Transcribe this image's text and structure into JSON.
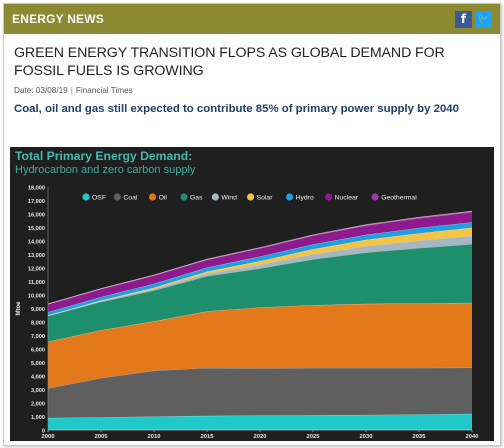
{
  "header": {
    "section_title": "ENERGY NEWS",
    "share_icons": [
      "facebook-icon",
      "twitter-icon"
    ],
    "facebook_glyph": "f",
    "twitter_glyph": "🐦"
  },
  "article": {
    "headline": "GREEN ENERGY TRANSITION FLOPS AS GLOBAL DEMAND FOR FOSSIL FUELS IS GROWING",
    "date": "Date: 03/08/19",
    "separator": "|",
    "source": "Financial Times",
    "subheadline": "Coal, oil and gas still expected to contribute 85% of primary power supply by 2040"
  },
  "chart_data": {
    "type": "area",
    "stacked": true,
    "title": "Total Primary Energy Demand:",
    "subtitle": "Hydrocarbon and zero carbon supply",
    "xlabel": "",
    "ylabel": "Mtoe",
    "xlim": [
      2000,
      2040
    ],
    "ylim": [
      0,
      18000
    ],
    "x_ticks": [
      2000,
      2005,
      2010,
      2015,
      2020,
      2025,
      2030,
      2035,
      2040
    ],
    "y_ticks": [
      0,
      1000,
      2000,
      3000,
      4000,
      5000,
      6000,
      7000,
      8000,
      9000,
      10000,
      11000,
      12000,
      13000,
      14000,
      15000,
      16000,
      17000,
      18000
    ],
    "y_tick_labels": [
      "0",
      "1,000",
      "2,000",
      "3,000",
      "4,000",
      "5,000",
      "6,000",
      "7,000",
      "8,000",
      "9,000",
      "10,000",
      "11,000",
      "12,000",
      "13,000",
      "14,000",
      "15,000",
      "16,000",
      "17,000",
      "18,000"
    ],
    "legend_position": "top",
    "grid": false,
    "x": [
      2000,
      2005,
      2010,
      2015,
      2020,
      2025,
      2030,
      2035,
      2040
    ],
    "series": [
      {
        "name": "OSF",
        "color": "#1fc9c9",
        "values": [
          900,
          950,
          1000,
          1050,
          1080,
          1100,
          1120,
          1150,
          1200
        ]
      },
      {
        "name": "Coal",
        "color": "#5f5f5f",
        "values": [
          2200,
          2900,
          3400,
          3550,
          3500,
          3500,
          3480,
          3450,
          3420
        ]
      },
      {
        "name": "Oil",
        "color": "#e3791a",
        "values": [
          3450,
          3550,
          3650,
          4200,
          4500,
          4650,
          4750,
          4780,
          4800
        ]
      },
      {
        "name": "Gas",
        "color": "#1e8f6c",
        "values": [
          1900,
          2100,
          2300,
          2600,
          2900,
          3400,
          3800,
          4100,
          4350
        ]
      },
      {
        "name": "Wind",
        "color": "#a7b7c2",
        "values": [
          30,
          60,
          120,
          190,
          280,
          380,
          480,
          560,
          620
        ]
      },
      {
        "name": "Solar",
        "color": "#f5c542",
        "values": [
          20,
          40,
          80,
          150,
          260,
          370,
          460,
          540,
          600
        ]
      },
      {
        "name": "Hydro",
        "color": "#1e9fe0",
        "values": [
          230,
          250,
          280,
          300,
          330,
          350,
          370,
          390,
          400
        ]
      },
      {
        "name": "Nuclear",
        "color": "#8e1a8e",
        "values": [
          590,
          600,
          620,
          580,
          620,
          660,
          700,
          730,
          760
        ]
      },
      {
        "name": "Geothermal",
        "color": "#a03aa8",
        "values": [
          20,
          25,
          30,
          35,
          40,
          45,
          50,
          55,
          60
        ]
      }
    ]
  }
}
